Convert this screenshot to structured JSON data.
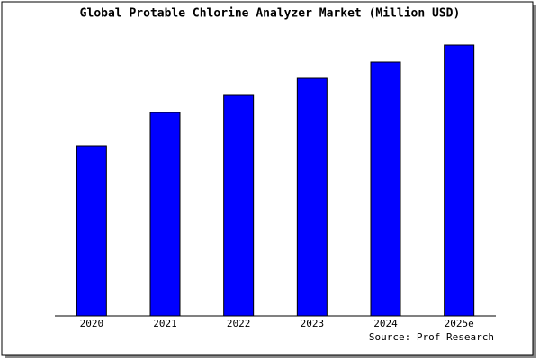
{
  "chart_data": {
    "type": "bar",
    "title": "Global Protable Chlorine Analyzer Market (Million USD)",
    "categories": [
      "2020",
      "2021",
      "2022",
      "2023",
      "2024",
      "2025e"
    ],
    "values": [
      189,
      226,
      245,
      264,
      282,
      301
    ],
    "color": "#0000ff",
    "ylim": [
      0,
      303
    ],
    "source": "Source: Prof Research"
  }
}
